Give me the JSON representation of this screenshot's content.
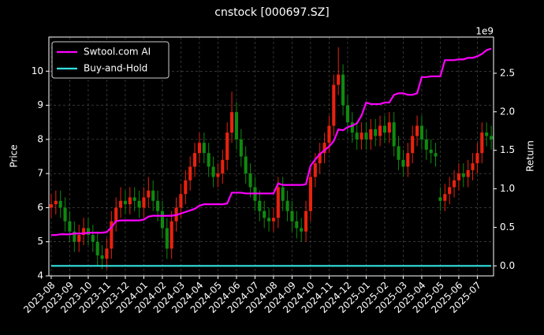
{
  "chart_data": {
    "type": "candlestick",
    "title": "cnstock [000697.SZ]",
    "ylabel": "Price",
    "y2label": "Return",
    "y2_offset_label": "1e9",
    "grid": true,
    "legend": "upper left",
    "up_color": "#e8220f",
    "down_color": "#0f8a0f",
    "categories": [
      "2023-08",
      null,
      null,
      null,
      "2023-09",
      null,
      null,
      null,
      "2023-10",
      null,
      null,
      null,
      "2023-11",
      null,
      null,
      null,
      "2023-12",
      null,
      null,
      null,
      "2024-01",
      null,
      null,
      null,
      "2024-02",
      null,
      null,
      null,
      "2024-03",
      null,
      null,
      null,
      "2024-04",
      null,
      null,
      null,
      "2024-05",
      null,
      null,
      null,
      "2024-06",
      null,
      null,
      null,
      "2024-07",
      null,
      null,
      null,
      "2024-08",
      null,
      null,
      null,
      "2024-09",
      null,
      null,
      null,
      "2024-10",
      null,
      null,
      null,
      "2024-11",
      null,
      null,
      null,
      "2024-12",
      null,
      null,
      null,
      "2025-01",
      null,
      null,
      null,
      "2025-02",
      null,
      null,
      null,
      "2025-03",
      null,
      null,
      null,
      "2025-04",
      null,
      null,
      null,
      "2025-05",
      null,
      null,
      null,
      "2025-06",
      null,
      null,
      null,
      "2025-07",
      null,
      null,
      null
    ],
    "candles": {
      "open": [
        6.0,
        6.1,
        6.2,
        6.0,
        5.6,
        5.3,
        5.0,
        5.2,
        5.4,
        5.2,
        5.0,
        4.6,
        4.5,
        4.8,
        5.6,
        6.0,
        6.2,
        6.1,
        6.3,
        6.2,
        6.0,
        6.3,
        6.5,
        6.2,
        5.9,
        5.4,
        4.8,
        5.6,
        6.0,
        6.4,
        6.8,
        7.2,
        7.6,
        7.9,
        7.6,
        7.2,
        6.9,
        7.0,
        7.4,
        8.2,
        8.8,
        8.0,
        7.5,
        7.0,
        6.6,
        6.2,
        5.9,
        5.7,
        5.6,
        5.7,
        6.6,
        6.2,
        5.9,
        5.6,
        5.4,
        5.3,
        5.9,
        6.9,
        7.3,
        7.6,
        7.9,
        8.4,
        9.6,
        9.9,
        9.0,
        8.5,
        8.2,
        8.0,
        8.2,
        8.0,
        8.3,
        8.1,
        8.4,
        8.2,
        8.5,
        7.8,
        7.4,
        7.2,
        7.6,
        8.1,
        8.4,
        8.0,
        7.7,
        7.6,
        6.3,
        6.2,
        6.4,
        6.6,
        6.8,
        7.0,
        6.9,
        7.1,
        7.3,
        7.6,
        8.2,
        8.1
      ],
      "high": [
        6.4,
        6.5,
        6.5,
        6.3,
        5.9,
        5.6,
        5.5,
        5.7,
        5.7,
        5.5,
        5.3,
        4.9,
        5.1,
        5.9,
        6.3,
        6.6,
        6.5,
        6.6,
        6.6,
        6.5,
        6.6,
        6.9,
        6.8,
        6.5,
        6.2,
        5.7,
        5.9,
        6.3,
        6.7,
        7.1,
        7.5,
        7.9,
        8.2,
        8.2,
        7.9,
        7.5,
        7.3,
        7.7,
        8.5,
        9.4,
        9.1,
        8.3,
        7.8,
        7.3,
        6.9,
        6.5,
        6.2,
        6.0,
        6.0,
        6.9,
        6.9,
        6.5,
        6.2,
        5.9,
        5.7,
        6.2,
        7.2,
        7.6,
        7.9,
        8.2,
        8.7,
        9.9,
        10.7,
        10.2,
        9.3,
        8.8,
        8.5,
        8.5,
        8.5,
        8.6,
        8.6,
        8.7,
        8.7,
        8.8,
        8.8,
        8.1,
        7.7,
        7.9,
        8.4,
        8.7,
        8.7,
        8.3,
        8.0,
        7.9,
        6.6,
        6.7,
        6.9,
        7.1,
        7.3,
        7.3,
        7.4,
        7.6,
        7.9,
        8.5,
        8.5,
        8.4
      ],
      "low": [
        5.7,
        5.8,
        5.7,
        5.3,
        5.0,
        4.7,
        4.7,
        4.9,
        4.9,
        4.7,
        4.3,
        4.2,
        4.2,
        4.5,
        5.3,
        5.7,
        5.8,
        5.8,
        5.9,
        5.7,
        5.7,
        6.0,
        5.9,
        5.6,
        5.1,
        4.5,
        4.5,
        5.3,
        5.7,
        6.1,
        6.5,
        6.9,
        7.3,
        7.3,
        6.9,
        6.6,
        6.6,
        6.7,
        7.1,
        7.9,
        7.7,
        7.2,
        6.7,
        6.3,
        5.9,
        5.6,
        5.4,
        5.3,
        5.3,
        5.4,
        5.9,
        5.6,
        5.3,
        5.1,
        5.0,
        5.0,
        5.6,
        6.6,
        7.0,
        7.3,
        7.6,
        8.1,
        9.3,
        8.7,
        8.2,
        7.9,
        7.7,
        7.7,
        7.7,
        7.7,
        7.8,
        7.8,
        7.9,
        7.9,
        7.5,
        7.1,
        6.9,
        6.9,
        7.3,
        7.8,
        7.7,
        7.4,
        7.3,
        7.2,
        5.9,
        5.9,
        6.1,
        6.3,
        6.5,
        6.6,
        6.6,
        6.8,
        7.0,
        7.3,
        7.8,
        7.7
      ],
      "close": [
        6.1,
        6.2,
        6.0,
        5.6,
        5.3,
        5.0,
        5.2,
        5.4,
        5.2,
        5.0,
        4.6,
        4.5,
        4.8,
        5.6,
        6.0,
        6.2,
        6.1,
        6.3,
        6.2,
        6.0,
        6.3,
        6.5,
        6.2,
        5.9,
        5.4,
        4.8,
        5.6,
        6.0,
        6.4,
        6.8,
        7.2,
        7.6,
        7.9,
        7.6,
        7.2,
        6.9,
        7.0,
        7.4,
        8.2,
        8.8,
        8.0,
        7.5,
        7.0,
        6.6,
        6.2,
        5.9,
        5.7,
        5.6,
        5.7,
        6.6,
        6.2,
        5.9,
        5.6,
        5.4,
        5.3,
        5.9,
        6.9,
        7.3,
        7.6,
        7.9,
        8.4,
        9.6,
        9.9,
        9.0,
        8.5,
        8.2,
        8.0,
        8.2,
        8.0,
        8.3,
        8.1,
        8.4,
        8.2,
        8.5,
        7.8,
        7.4,
        7.2,
        7.6,
        8.1,
        8.4,
        8.0,
        7.7,
        7.6,
        7.5,
        6.2,
        6.4,
        6.6,
        6.8,
        7.0,
        6.9,
        7.1,
        7.3,
        7.6,
        8.2,
        8.1,
        8.0
      ]
    },
    "series": [
      {
        "name": "Swtool.com AI",
        "color": "#ff00ff",
        "axis": "y2",
        "values": [
          0.4,
          0.4,
          0.41,
          0.41,
          0.41,
          0.42,
          0.42,
          0.42,
          0.43,
          0.43,
          0.43,
          0.43,
          0.44,
          0.5,
          0.58,
          0.59,
          0.59,
          0.59,
          0.59,
          0.59,
          0.6,
          0.64,
          0.65,
          0.65,
          0.65,
          0.65,
          0.65,
          0.66,
          0.68,
          0.7,
          0.72,
          0.74,
          0.78,
          0.8,
          0.8,
          0.8,
          0.8,
          0.8,
          0.81,
          0.95,
          0.95,
          0.95,
          0.94,
          0.94,
          0.94,
          0.94,
          0.94,
          0.94,
          0.94,
          1.07,
          1.05,
          1.05,
          1.05,
          1.05,
          1.05,
          1.06,
          1.3,
          1.38,
          1.45,
          1.5,
          1.55,
          1.62,
          1.77,
          1.76,
          1.8,
          1.82,
          1.85,
          1.95,
          2.12,
          2.1,
          2.1,
          2.1,
          2.12,
          2.12,
          2.22,
          2.24,
          2.24,
          2.22,
          2.22,
          2.24,
          2.45,
          2.45,
          2.46,
          2.46,
          2.46,
          2.67,
          2.67,
          2.67,
          2.68,
          2.68,
          2.7,
          2.7,
          2.72,
          2.75,
          2.8,
          2.82
        ]
      },
      {
        "name": "Buy-and-Hold",
        "color": "#33e0e0",
        "axis": "y2",
        "values": [
          0,
          0,
          0,
          0,
          0,
          0,
          0,
          0,
          0,
          0,
          0,
          0,
          0,
          0,
          0,
          0,
          0,
          0,
          0,
          0,
          0,
          0,
          0,
          0,
          0,
          0,
          0,
          0,
          0,
          0,
          0,
          0,
          0,
          0,
          0,
          0,
          0,
          0,
          0,
          0,
          0,
          0,
          0,
          0,
          0,
          0,
          0,
          0,
          0,
          0,
          0,
          0,
          0,
          0,
          0,
          0,
          0,
          0,
          0,
          0,
          0,
          0,
          0,
          0,
          0,
          0,
          0,
          0,
          0,
          0,
          0,
          0,
          0,
          0,
          0,
          0,
          0,
          0,
          0,
          0,
          0,
          0,
          0,
          0,
          0,
          0,
          0,
          0,
          0,
          0,
          0,
          0,
          0,
          0,
          0,
          0
        ]
      }
    ],
    "ylim": [
      4,
      11.0
    ],
    "yticks": [
      4,
      5,
      6,
      7,
      8,
      9,
      10
    ],
    "y2lim": [
      -0.13,
      2.97
    ],
    "y2ticks": [
      {
        "value": 0,
        "label": "0.0"
      },
      {
        "value": 0.5,
        "label": "0.5"
      },
      {
        "value": 1,
        "label": "1.0"
      },
      {
        "value": 1.5,
        "label": "1.5"
      },
      {
        "value": 2,
        "label": "2.0"
      },
      {
        "value": 2.5,
        "label": "2.5"
      }
    ]
  }
}
